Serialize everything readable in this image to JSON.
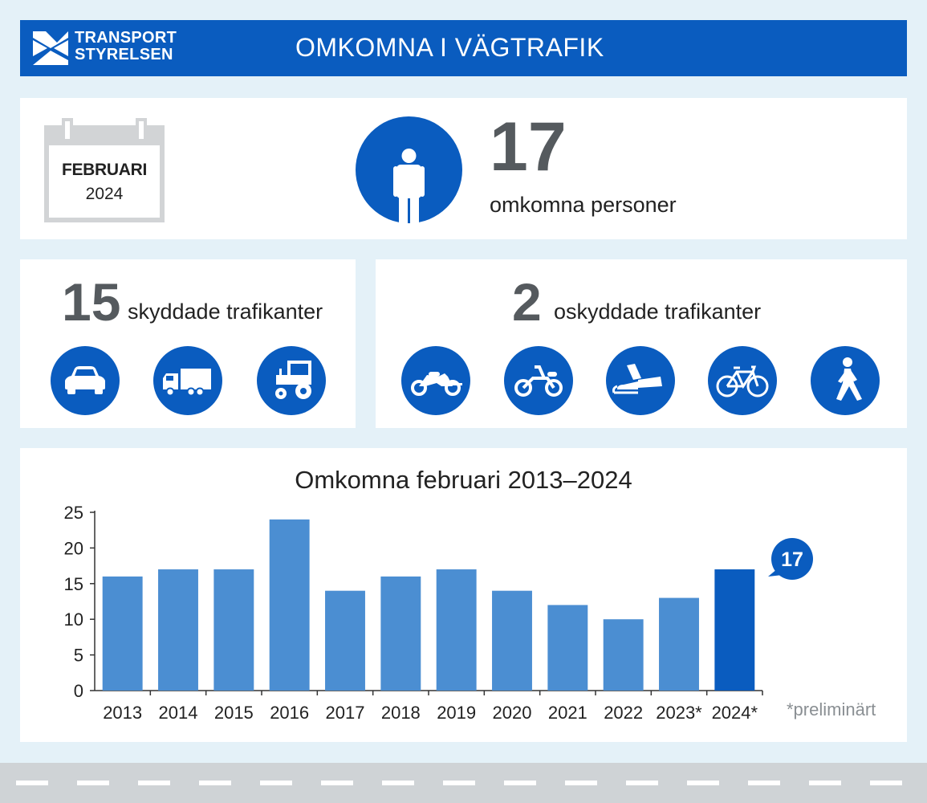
{
  "header": {
    "logo_line1": "TRANSPORT",
    "logo_line2": "STYRELSEN",
    "title": "OMKOMNA I VÄGTRAFIK"
  },
  "summary": {
    "month": "FEBRUARI",
    "year": "2024",
    "total": "17",
    "total_label": "omkomna personer"
  },
  "protected": {
    "count": "15",
    "label": "skyddade trafikanter",
    "icons": [
      "car-icon",
      "truck-icon",
      "tractor-icon"
    ]
  },
  "unprotected": {
    "count": "2",
    "label": "oskyddade trafikanter",
    "icons": [
      "motorcycle-icon",
      "moped-icon",
      "snowmobile-icon",
      "bicycle-icon",
      "pedestrian-icon"
    ]
  },
  "colors": {
    "brand": "#0a5cbf",
    "bar": "#4b8ed2",
    "bar_highlight": "#0a5cbf",
    "number_gray": "#555a5e"
  },
  "chart_data": {
    "type": "bar",
    "title": "Omkomna februari 2013–2024",
    "categories": [
      "2013",
      "2014",
      "2015",
      "2016",
      "2017",
      "2018",
      "2019",
      "2020",
      "2021",
      "2022",
      "2023*",
      "2024*"
    ],
    "values": [
      16,
      17,
      17,
      24,
      14,
      16,
      17,
      14,
      12,
      10,
      13,
      17
    ],
    "highlight_index": 11,
    "highlight_label": "17",
    "ylim": [
      0,
      25
    ],
    "yticks": [
      0,
      5,
      10,
      15,
      20,
      25
    ],
    "grid": false,
    "footnote": "*preliminärt"
  }
}
